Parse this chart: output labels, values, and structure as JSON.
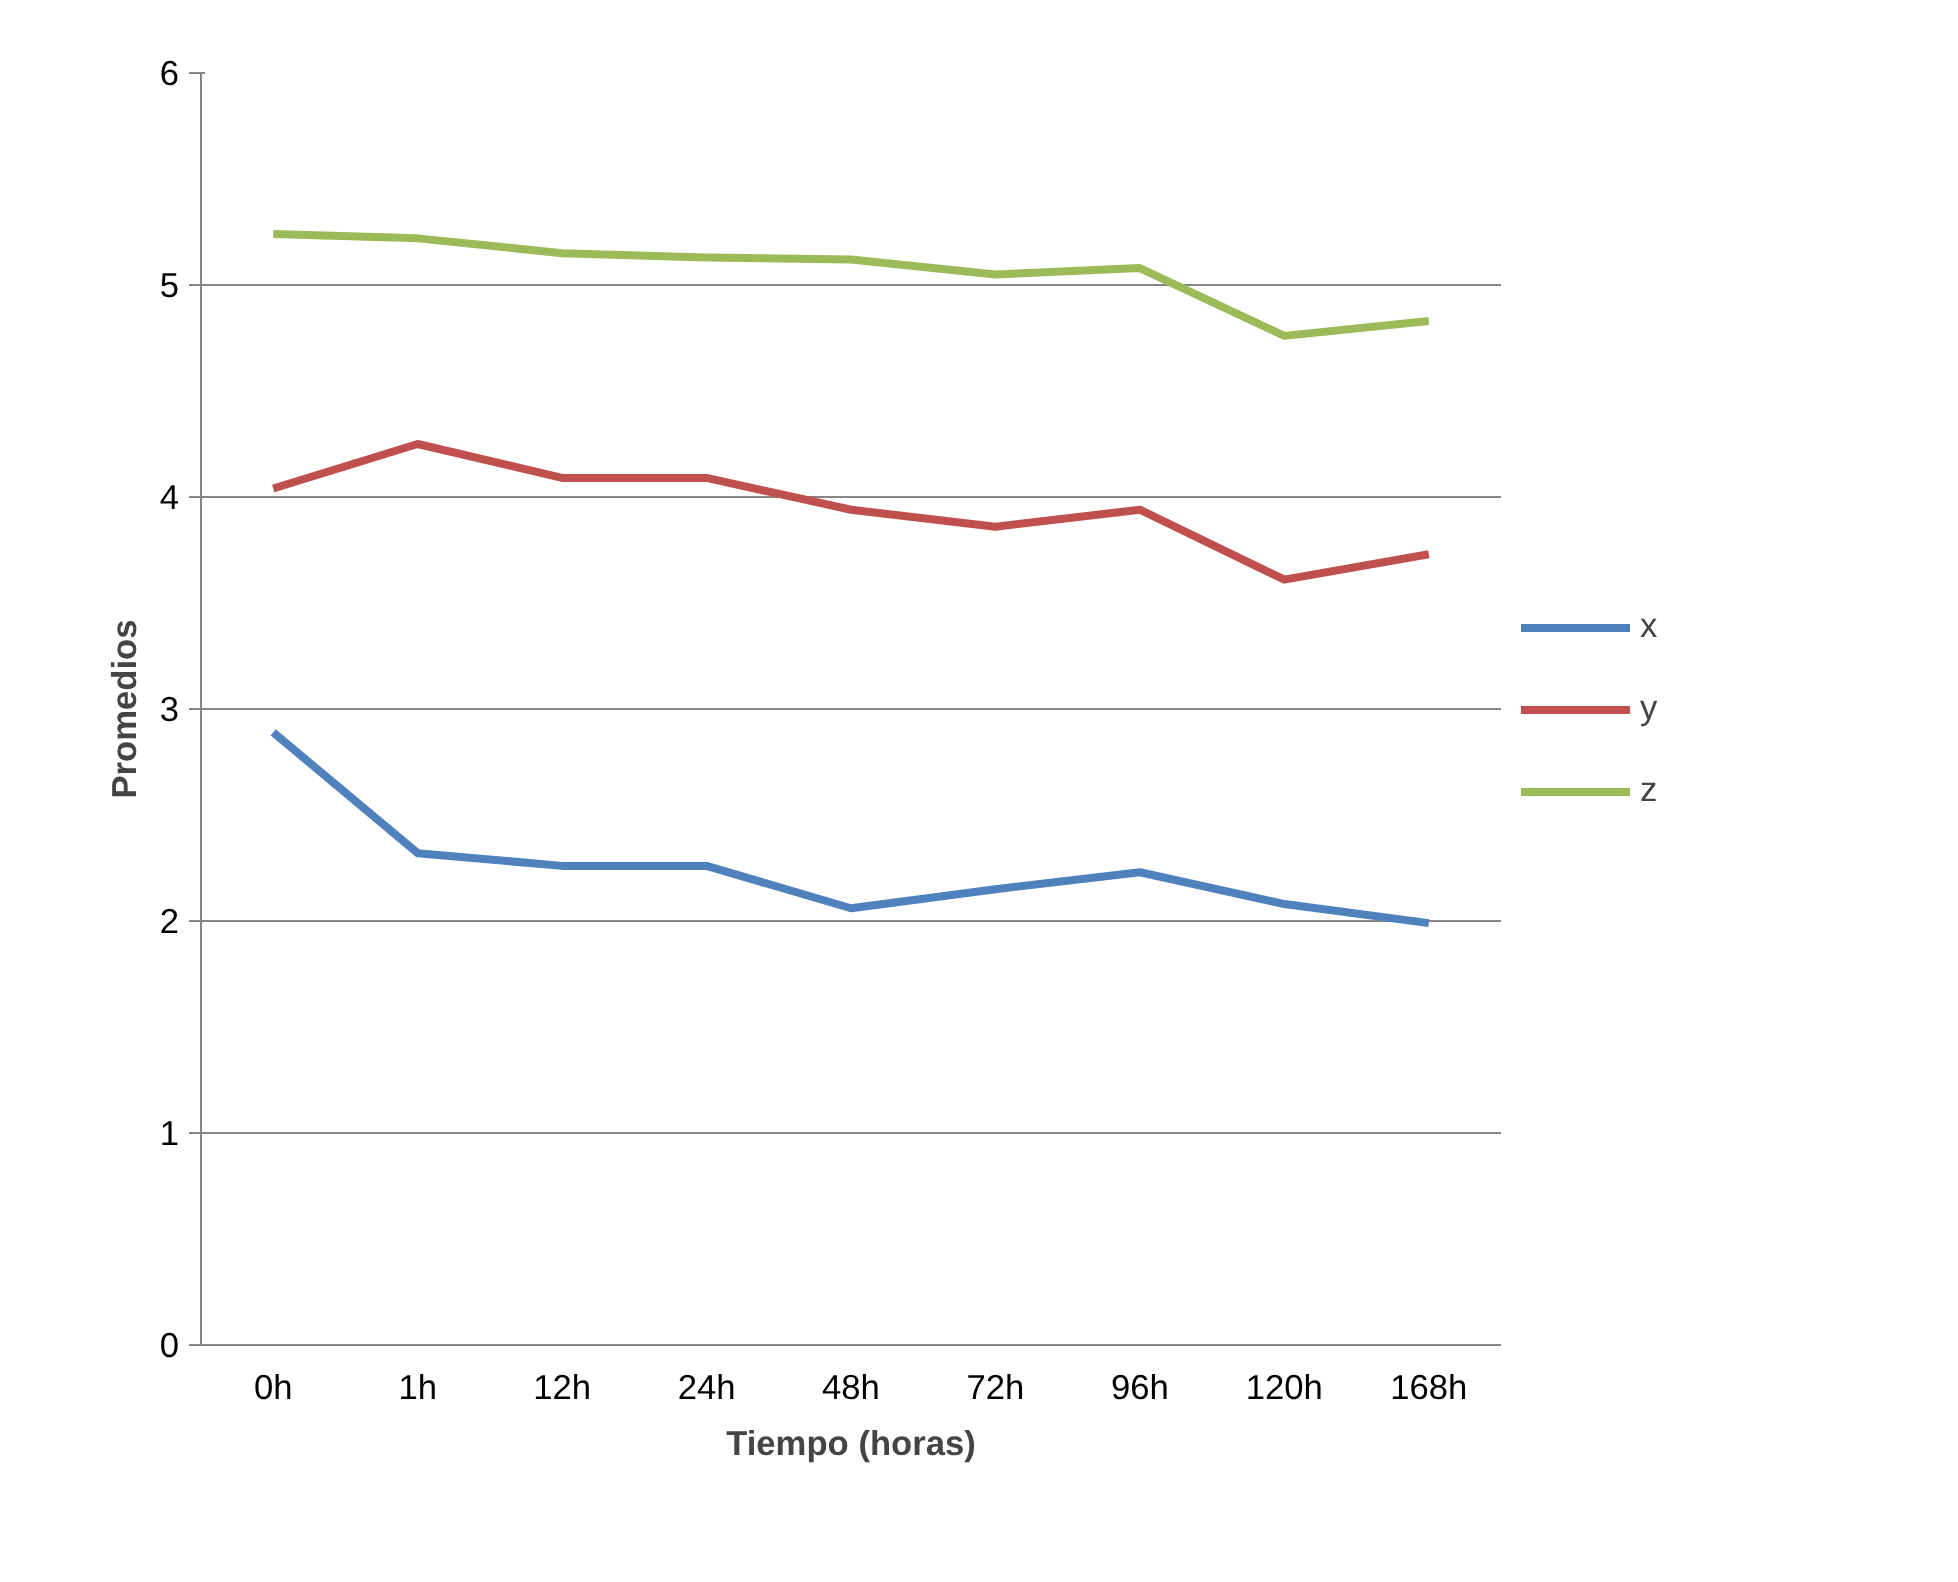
{
  "chart_data": {
    "type": "line",
    "xlabel": "Tiempo (horas)",
    "ylabel": "Promedios",
    "categories": [
      "0h",
      "1h",
      "12h",
      "24h",
      "48h",
      "72h",
      "96h",
      "120h",
      "168h"
    ],
    "series": [
      {
        "name": "x",
        "color": "#4f81bd",
        "values": [
          2.89,
          2.32,
          2.26,
          2.26,
          2.06,
          2.15,
          2.23,
          2.08,
          1.99
        ]
      },
      {
        "name": "y",
        "color": "#c0504d",
        "values": [
          4.04,
          4.25,
          4.09,
          4.09,
          3.94,
          3.86,
          3.94,
          3.61,
          3.73
        ]
      },
      {
        "name": "z",
        "color": "#9bbb59",
        "values": [
          5.24,
          5.22,
          5.15,
          5.13,
          5.12,
          5.05,
          5.08,
          4.76,
          4.83
        ]
      }
    ],
    "ylim": [
      0,
      6
    ],
    "yticks": [
      0,
      1,
      2,
      3,
      4,
      5,
      6
    ],
    "grid": "y",
    "legend": "right",
    "marker": "none",
    "line_style": "solid"
  }
}
